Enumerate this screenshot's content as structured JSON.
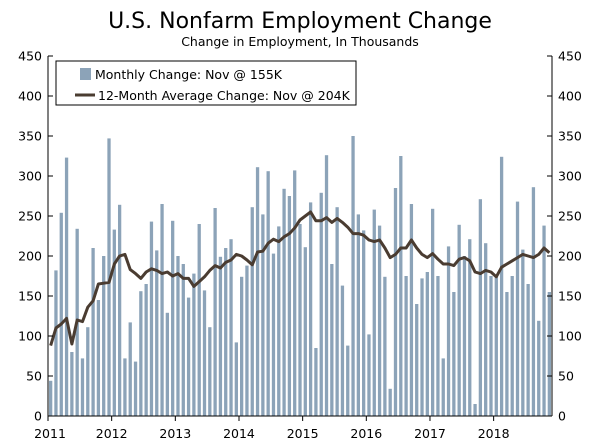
{
  "chart_data": {
    "type": "bar",
    "title": "U.S. Nonfarm Employment Change",
    "subtitle": "Change in Employment, In Thousands",
    "xlabel": "",
    "ylabel": "",
    "ylim": [
      0,
      450
    ],
    "yticks": [
      0,
      50,
      100,
      150,
      200,
      250,
      300,
      350,
      400,
      450
    ],
    "ytick_labels": [
      "0",
      "50",
      "100",
      "150",
      "200",
      "250",
      "300",
      "350",
      "400",
      "450"
    ],
    "year_labels": [
      "2011",
      "2012",
      "2013",
      "2014",
      "2015",
      "2016",
      "2017",
      "2018"
    ],
    "colors": {
      "bar": "#8ca3b8",
      "line": "#4a3c31",
      "axis": "#000000"
    },
    "series": [
      {
        "name": "Monthly Change: Nov @ 155K",
        "type": "bar",
        "values": [
          44,
          182,
          254,
          323,
          80,
          234,
          72,
          111,
          210,
          145,
          200,
          347,
          233,
          264,
          72,
          117,
          68,
          156,
          165,
          243,
          207,
          265,
          129,
          244,
          200,
          190,
          148,
          178,
          240,
          157,
          111,
          260,
          199,
          210,
          221,
          92,
          174,
          188,
          261,
          311,
          252,
          306,
          203,
          237,
          284,
          275,
          307,
          240,
          211,
          267,
          85,
          279,
          326,
          190,
          261,
          163,
          88,
          350,
          252,
          232,
          102,
          258,
          238,
          174,
          34,
          285,
          325,
          175,
          265,
          140,
          172,
          180,
          259,
          175,
          72,
          212,
          155,
          239,
          200,
          221,
          15,
          271,
          216,
          175,
          174,
          324,
          155,
          175,
          268,
          208,
          165,
          286,
          119,
          238,
          155
        ],
        "legend": "Monthly Change: Nov @ 155K"
      },
      {
        "name": "12-Month Average Change: Nov @ 204K",
        "type": "line",
        "values": [
          88,
          110,
          115,
          122,
          90,
          120,
          118,
          136,
          144,
          165,
          166,
          167,
          190,
          200,
          202,
          183,
          178,
          172,
          180,
          184,
          182,
          178,
          180,
          175,
          178,
          172,
          172,
          162,
          168,
          174,
          182,
          188,
          185,
          192,
          195,
          202,
          200,
          195,
          189,
          205,
          206,
          216,
          221,
          218,
          224,
          228,
          235,
          245,
          250,
          255,
          244,
          244,
          248,
          242,
          247,
          242,
          236,
          228,
          228,
          226,
          220,
          218,
          220,
          210,
          198,
          202,
          210,
          210,
          220,
          210,
          202,
          198,
          203,
          196,
          190,
          190,
          188,
          196,
          198,
          194,
          180,
          178,
          182,
          180,
          174,
          186,
          190,
          194,
          198,
          202,
          200,
          198,
          202,
          210,
          204
        ],
        "legend": "12-Month Average Change: Nov @ 204K"
      }
    ]
  }
}
